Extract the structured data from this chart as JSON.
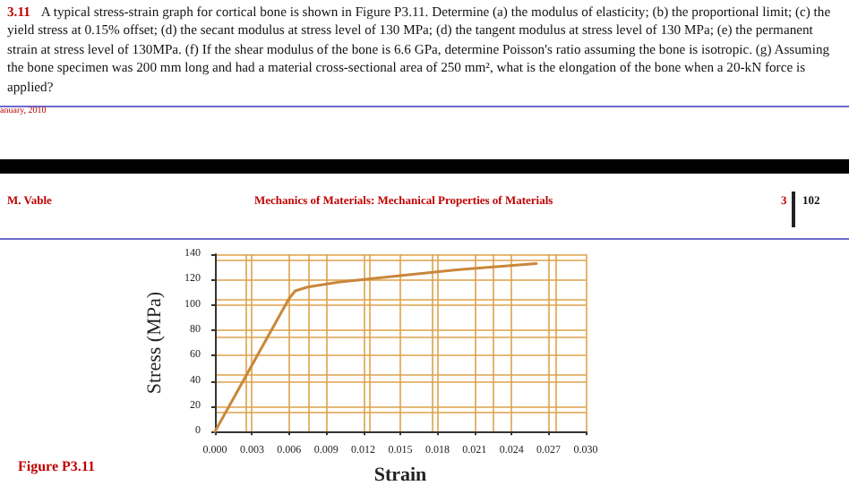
{
  "chart_data": {
    "type": "line",
    "xlabel": "Strain",
    "ylabel": "Stress (MPa)",
    "x": [
      0,
      0.006,
      0.0065,
      0.0075,
      0.01,
      0.015,
      0.02,
      0.026
    ],
    "series": [
      {
        "color": "#c8873a",
        "values": [
          0,
          105,
          111,
          114,
          118,
          123,
          128,
          132.5
        ]
      }
    ],
    "xlim": [
      0,
      0.03
    ],
    "xticks": [
      {
        "value": 0,
        "label": "0.000"
      },
      {
        "value": 0.003,
        "label": "0.003"
      },
      {
        "value": 0.006,
        "label": "0.006"
      },
      {
        "value": 0.009,
        "label": "0.009"
      },
      {
        "value": 0.012,
        "label": "0.012"
      },
      {
        "value": 0.015,
        "label": "0.015"
      },
      {
        "value": 0.018,
        "label": "0.018"
      },
      {
        "value": 0.021,
        "label": "0.021"
      },
      {
        "value": 0.024,
        "label": "0.024"
      },
      {
        "value": 0.027,
        "label": "0.027"
      },
      {
        "value": 0.03,
        "label": "0.030"
      }
    ],
    "ylim": [
      0,
      140
    ],
    "yticks": [
      0,
      20,
      40,
      60,
      80,
      100,
      120,
      140
    ],
    "grid": true,
    "marker": "none",
    "line_style": "solid",
    "annotations": [
      "3.11",
      "A typical stress-strain graph for cortical bone is shown in Figure P3.11. Determine (a) the modulus of elasticity; (b) the proportional limit; (c) the yield stress at 0.15% offset; (d) the secant modulus at stress level of 130 MPa; (d) the tangent modulus at stress level of 130 MPa; (e) the permanent strain at stress level of 130MPa. (f) If the shear modulus of the bone is 6.6 GPa, determine Poisson's ratio assuming the bone is isotropic. (g) Assuming the bone specimen was 200 mm long and had a material cross-sectional area of 250 mm², what is the elongation of the bone when a 20-kN force is applied?",
      "anuary, 2010",
      "M. Vable",
      "Mechanics of Materials: Mechanical Properties of Materials",
      "3",
      "102",
      "Figure P3.11"
    ]
  }
}
